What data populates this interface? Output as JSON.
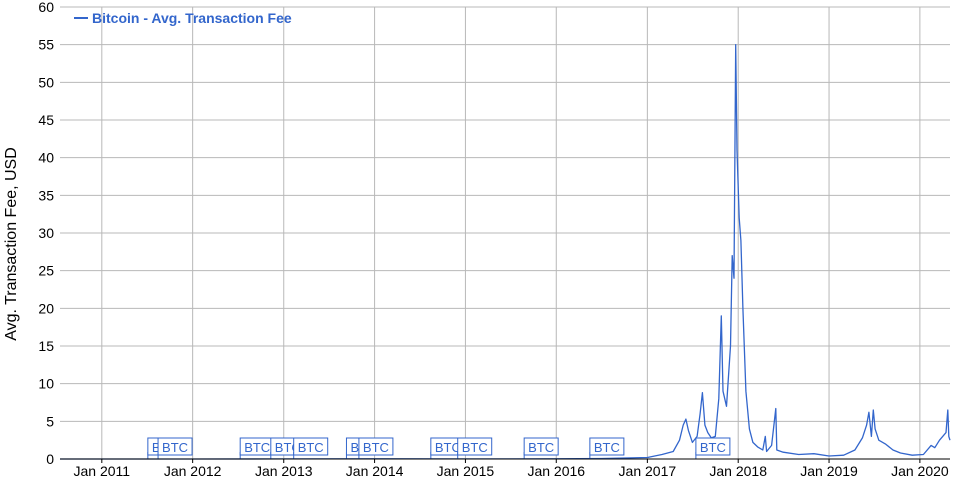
{
  "chart_data": {
    "type": "line",
    "ylabel": "Avg. Transaction Fee, USD",
    "ylim": [
      0,
      60
    ],
    "yticks": [
      0,
      5,
      10,
      15,
      20,
      25,
      30,
      35,
      40,
      45,
      50,
      55,
      60
    ],
    "xlim": [
      "2010-07-17",
      "2020-05-01"
    ],
    "xticks": [
      {
        "label": "Jan 2011",
        "date": "2011-01-01"
      },
      {
        "label": "Jan 2012",
        "date": "2012-01-01"
      },
      {
        "label": "Jan 2013",
        "date": "2013-01-01"
      },
      {
        "label": "Jan 2014",
        "date": "2014-01-01"
      },
      {
        "label": "Jan 2015",
        "date": "2015-01-01"
      },
      {
        "label": "Jan 2016",
        "date": "2016-01-01"
      },
      {
        "label": "Jan 2017",
        "date": "2017-01-01"
      },
      {
        "label": "Jan 2018",
        "date": "2018-01-01"
      },
      {
        "label": "Jan 2019",
        "date": "2019-01-01"
      },
      {
        "label": "Jan 2020",
        "date": "2020-01-01"
      }
    ],
    "grid": true,
    "legend_position": "top-left",
    "series": [
      {
        "name": "Bitcoin - Avg. Transaction Fee",
        "color": "#3366cc",
        "points": [
          [
            "2010-07-17",
            0.0
          ],
          [
            "2012-01-01",
            0.0
          ],
          [
            "2013-01-01",
            0.01
          ],
          [
            "2014-01-01",
            0.02
          ],
          [
            "2015-01-01",
            0.01
          ],
          [
            "2016-01-01",
            0.03
          ],
          [
            "2016-07-01",
            0.06
          ],
          [
            "2017-01-01",
            0.2
          ],
          [
            "2017-03-01",
            0.6
          ],
          [
            "2017-04-15",
            1.0
          ],
          [
            "2017-05-10",
            2.5
          ],
          [
            "2017-05-25",
            4.5
          ],
          [
            "2017-06-05",
            5.3
          ],
          [
            "2017-06-15",
            3.8
          ],
          [
            "2017-07-01",
            2.2
          ],
          [
            "2017-07-20",
            3.0
          ],
          [
            "2017-08-01",
            6.0
          ],
          [
            "2017-08-10",
            8.8
          ],
          [
            "2017-08-20",
            4.5
          ],
          [
            "2017-09-01",
            3.5
          ],
          [
            "2017-09-15",
            2.8
          ],
          [
            "2017-10-01",
            3.0
          ],
          [
            "2017-10-15",
            8.0
          ],
          [
            "2017-10-25",
            19.0
          ],
          [
            "2017-11-01",
            9.0
          ],
          [
            "2017-11-15",
            7.0
          ],
          [
            "2017-11-25",
            12.0
          ],
          [
            "2017-12-01",
            15.0
          ],
          [
            "2017-12-08",
            27.0
          ],
          [
            "2017-12-15",
            24.0
          ],
          [
            "2017-12-22",
            55.0
          ],
          [
            "2017-12-27",
            41.0
          ],
          [
            "2018-01-05",
            32.0
          ],
          [
            "2018-01-12",
            29.0
          ],
          [
            "2018-01-20",
            20.0
          ],
          [
            "2018-02-01",
            9.0
          ],
          [
            "2018-02-15",
            4.0
          ],
          [
            "2018-03-01",
            2.2
          ],
          [
            "2018-03-20",
            1.6
          ],
          [
            "2018-04-10",
            1.2
          ],
          [
            "2018-04-20",
            3.0
          ],
          [
            "2018-04-25",
            1.0
          ],
          [
            "2018-05-15",
            1.8
          ],
          [
            "2018-06-01",
            6.7
          ],
          [
            "2018-06-05",
            1.2
          ],
          [
            "2018-07-01",
            0.9
          ],
          [
            "2018-09-01",
            0.6
          ],
          [
            "2018-11-01",
            0.7
          ],
          [
            "2019-01-01",
            0.4
          ],
          [
            "2019-03-01",
            0.5
          ],
          [
            "2019-04-15",
            1.2
          ],
          [
            "2019-05-15",
            2.8
          ],
          [
            "2019-06-01",
            4.5
          ],
          [
            "2019-06-10",
            6.2
          ],
          [
            "2019-06-20",
            3.0
          ],
          [
            "2019-06-28",
            6.5
          ],
          [
            "2019-07-05",
            4.0
          ],
          [
            "2019-07-20",
            2.5
          ],
          [
            "2019-08-15",
            2.0
          ],
          [
            "2019-09-15",
            1.2
          ],
          [
            "2019-10-15",
            0.8
          ],
          [
            "2019-12-01",
            0.5
          ],
          [
            "2020-01-15",
            0.6
          ],
          [
            "2020-02-15",
            1.8
          ],
          [
            "2020-03-01",
            1.5
          ],
          [
            "2020-03-20",
            2.5
          ],
          [
            "2020-04-15",
            3.5
          ],
          [
            "2020-04-22",
            6.5
          ],
          [
            "2020-04-26",
            3.0
          ],
          [
            "2020-05-01",
            2.5
          ]
        ]
      }
    ],
    "annotations": [
      {
        "text": "B",
        "date": "2011-07-05"
      },
      {
        "text": "BTC",
        "date": "2011-08-15"
      },
      {
        "text": "BTC",
        "date": "2012-07-10"
      },
      {
        "text": "BTC",
        "date": "2012-11-10"
      },
      {
        "text": "BTC",
        "date": "2013-02-10"
      },
      {
        "text": "B",
        "date": "2013-09-10"
      },
      {
        "text": "BTC",
        "date": "2013-10-30"
      },
      {
        "text": "BTC",
        "date": "2014-08-15"
      },
      {
        "text": "BTC",
        "date": "2014-12-01"
      },
      {
        "text": "BTC",
        "date": "2015-08-25"
      },
      {
        "text": "BTC",
        "date": "2016-05-15"
      },
      {
        "text": "BTC",
        "date": "2017-07-15"
      }
    ]
  }
}
